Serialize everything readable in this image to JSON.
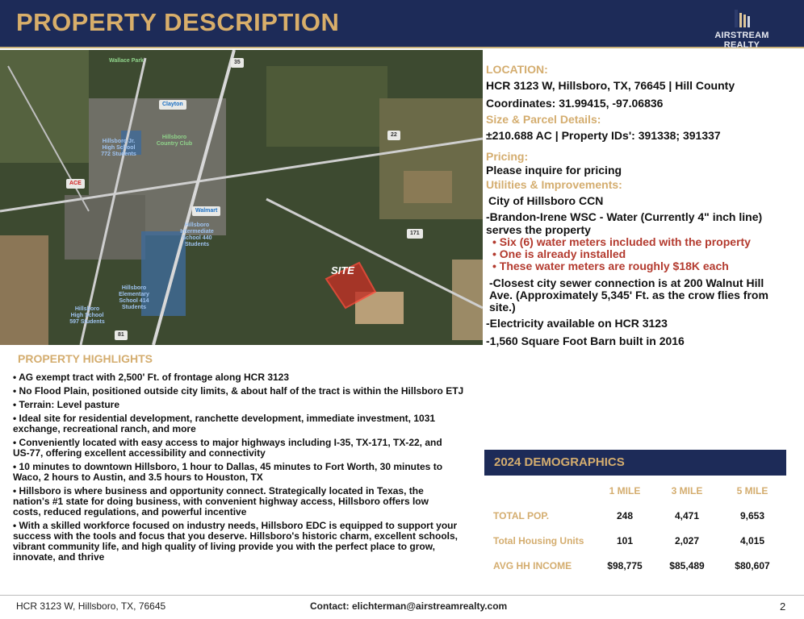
{
  "header": {
    "title": "PROPERTY DESCRIPTION",
    "logo_text": "AIRSTREAM REALTY"
  },
  "map": {
    "labels": {
      "wallace_park": "Wallace Park",
      "country_club": "Hillsboro Country Club",
      "walmart": "Walmart",
      "clayton": "Clayton",
      "jr_high": "Hillsboro Jr. High School 772 Students",
      "intermediate": "Hillsboro Intermediate School 440 Students",
      "elementary": "Hillsboro Elementary School 414 Students",
      "high": "Hillsboro High School 597 Students",
      "site": "SITE",
      "i35": "35",
      "hwy22": "22",
      "hwy171": "171",
      "hwy81": "81",
      "ace": "ACE"
    }
  },
  "right": {
    "location_h": "LOCATION:",
    "address": "HCR 3123 W, Hillsboro, TX, 76645 | Hill County",
    "coords": "Coordinates: 31.99415, -97.06836",
    "size_h": "Size & Parcel Details:",
    "size": "±210.688 AC | Property IDs': 391338; 391337",
    "pricing_h": "Pricing:",
    "pricing": "Please inquire for pricing",
    "util_h": "Utilities & Improvements:",
    "util": [
      "City of Hillsboro CCN",
      "-Brandon-Irene WSC - Water (Currently 4\" inch line) serves the property"
    ],
    "meters": [
      "• Six (6) water meters included with the property",
      "• One is already installed",
      "• These water meters are roughly $18K each"
    ],
    "sewer": "-Closest city sewer connection is at 200 Walnut Hill Ave. (Approximately 5,345' Ft. as the crow flies from site.)",
    "electric": "-Electricity available on HCR 3123",
    "barn": "-1,560 Square Foot Barn built in 2016"
  },
  "highlights": {
    "title": "PROPERTY HIGHLIGHTS",
    "items": [
      "• AG exempt tract with 2,500' Ft. of frontage along HCR 3123",
      "• No Flood Plain, positioned outside city limits, & about half of the tract is within the Hillsboro ETJ",
      "• Terrain: Level pasture",
      "• Ideal site for residential development, ranchette development, immediate investment, 1031 exchange, recreational ranch, and more",
      "• Conveniently located with easy access to major highways including I-35, TX-171, TX-22, and US-77, offering excellent accessibility and connectivity",
      "• 10 minutes to downtown Hillsboro, 1 hour to Dallas, 45 minutes to Fort Worth, 30 minutes to Waco, 2 hours to Austin, and 3.5 hours to Houston, TX",
      "• Hillsboro is where business and opportunity connect. Strategically located in Texas, the nation's #1 state for doing business, with convenient highway access, Hillsboro offers low costs, reduced regulations, and powerful incentive",
      "• With a skilled workforce focused on industry needs, Hillsboro EDC is equipped to support your success with the tools and focus that you deserve. Hillsboro's historic charm, excellent schools, vibrant community life, and high quality of living provide you with the perfect place to grow, innovate, and thrive"
    ]
  },
  "demographics": {
    "title": "2024 DEMOGRAPHICS",
    "columns": [
      "1 MILE",
      "3 MILE",
      "5 MILE"
    ],
    "rows": [
      {
        "label": "TOTAL POP.",
        "values": [
          "248",
          "4,471",
          "9,653"
        ]
      },
      {
        "label": "Total Housing Units",
        "values": [
          "101",
          "2,027",
          "4,015"
        ]
      },
      {
        "label": "AVG HH INCOME",
        "values": [
          "$98,775",
          "$85,489",
          "$80,607"
        ]
      }
    ]
  },
  "footer": {
    "address": "HCR 3123 W, Hillsboro, TX, 76645",
    "contact": "Contact: elichterman@airstreamrealty.com",
    "page": "2"
  }
}
